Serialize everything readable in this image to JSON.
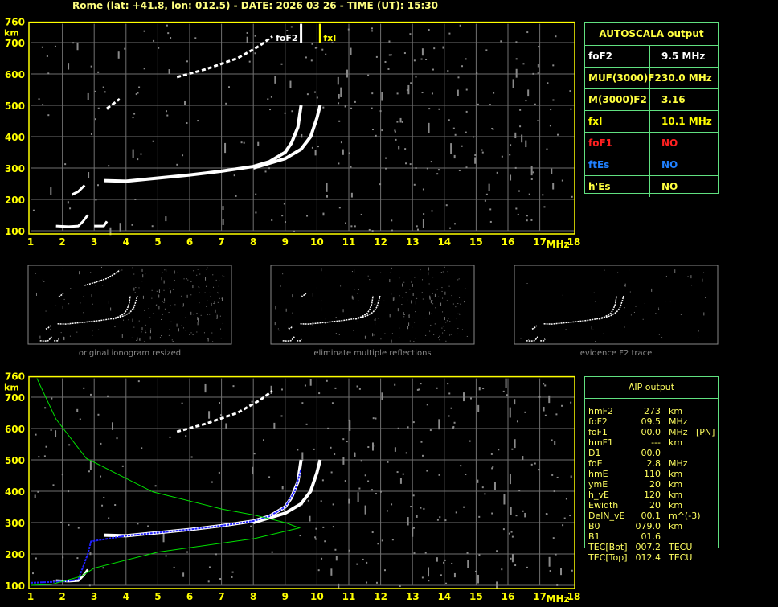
{
  "header": {
    "title": "Rome (lat: +41.8, lon: 012.5) - DATE: 2026 03 26 - TIME (UT): 15:30"
  },
  "colors": {
    "axis": "#ffff00",
    "grid": "#707070",
    "trace": "#ffffff",
    "profile": "#00e000",
    "fit": "#2020ff",
    "table_border": "#60e080",
    "label_yellow": "#ffff40",
    "foF1": "#ff2020",
    "ftEs": "#2080ff"
  },
  "autoscala": {
    "title": "AUTOSCALA output",
    "rows": [
      {
        "key": "foF2",
        "value": "9.5 MHz",
        "color": "#ffffff"
      },
      {
        "key": "MUF(3000)F2",
        "value": "30.0 MHz",
        "color": "#ffff40"
      },
      {
        "key": "M(3000)F2",
        "value": "3.16",
        "color": "#ffff40"
      },
      {
        "key": "fxI",
        "value": "10.1 MHz",
        "color": "#ffff00"
      },
      {
        "key": "foF1",
        "value": "NO",
        "color": "#ff2020"
      },
      {
        "key": "ftEs",
        "value": "NO",
        "color": "#2080ff"
      },
      {
        "key": "h'Es",
        "value": "NO",
        "color": "#ffff40"
      }
    ]
  },
  "aip": {
    "title": "AIP output",
    "rows": [
      {
        "k": "hmF2",
        "v": "273",
        "u": "km",
        "x": ""
      },
      {
        "k": "foF2",
        "v": "09.5",
        "u": "MHz",
        "x": ""
      },
      {
        "k": "foF1",
        "v": "00.0",
        "u": "MHz",
        "x": "[PN]"
      },
      {
        "k": "hmF1",
        "v": "---",
        "u": "km",
        "x": ""
      },
      {
        "k": "D1",
        "v": "00.0",
        "u": "",
        "x": ""
      },
      {
        "k": "foE",
        "v": "2.8",
        "u": "MHz",
        "x": ""
      },
      {
        "k": "hmE",
        "v": "110",
        "u": "km",
        "x": ""
      },
      {
        "k": "ymE",
        "v": "20",
        "u": "km",
        "x": ""
      },
      {
        "k": "h_vE",
        "v": "120",
        "u": "km",
        "x": ""
      },
      {
        "k": "Ewidth",
        "v": "20",
        "u": "km",
        "x": ""
      },
      {
        "k": "DelN_vE",
        "v": "00.1",
        "u": "m^(-3)",
        "x": ""
      },
      {
        "k": "B0",
        "v": "079.0",
        "u": "km",
        "x": ""
      },
      {
        "k": "B1",
        "v": "01.6",
        "u": "",
        "x": ""
      },
      {
        "k": "TEC[Bot]",
        "v": "007.2",
        "u": "TECU",
        "x": ""
      },
      {
        "k": "TEC[Top]",
        "v": "012.4",
        "u": "TECU",
        "x": ""
      }
    ]
  },
  "thumbnails": [
    {
      "caption": "original ionogram resized"
    },
    {
      "caption": "eliminate multiple reflections"
    },
    {
      "caption": "evidence F2 trace"
    }
  ],
  "chart_data": [
    {
      "type": "scatter",
      "title": "",
      "xlabel": "MHz",
      "ylabel": "km",
      "xlim": [
        1,
        18
      ],
      "ylim": [
        100,
        760
      ],
      "xticks": [
        "1",
        "2",
        "3",
        "4",
        "5",
        "6",
        "7",
        "8",
        "9",
        "10",
        "11",
        "12",
        "13",
        "14",
        "15",
        "16",
        "17",
        "18"
      ],
      "yticks": [
        "100",
        "200",
        "300",
        "400",
        "500",
        "600",
        "700",
        "760"
      ],
      "grid": true,
      "markers": [
        {
          "label": "foF2",
          "x": 9.5
        },
        {
          "label": "fxI",
          "x": 10.1
        }
      ],
      "series": [
        {
          "role": "o-trace",
          "points": [
            [
              3.3,
              260
            ],
            [
              4,
              258
            ],
            [
              5,
              268
            ],
            [
              6,
              278
            ],
            [
              7,
              290
            ],
            [
              8,
              305
            ],
            [
              8.5,
              320
            ],
            [
              9,
              350
            ],
            [
              9.2,
              380
            ],
            [
              9.4,
              430
            ],
            [
              9.5,
              500
            ]
          ]
        },
        {
          "role": "x-trace",
          "points": [
            [
              8,
              300
            ],
            [
              9,
              330
            ],
            [
              9.5,
              360
            ],
            [
              9.8,
              400
            ],
            [
              10.0,
              460
            ],
            [
              10.1,
              500
            ]
          ]
        },
        {
          "role": "second-hop",
          "points": [
            [
              5.6,
              590
            ],
            [
              6.5,
              615
            ],
            [
              7.5,
              650
            ],
            [
              8.2,
              690
            ],
            [
              8.6,
              720
            ]
          ]
        },
        {
          "role": "spread-patch",
          "points": [
            [
              3.4,
              490
            ],
            [
              3.6,
              505
            ],
            [
              3.8,
              520
            ]
          ]
        },
        {
          "role": "e-region",
          "points": [
            [
              1.8,
              115
            ],
            [
              2.2,
              113
            ],
            [
              2.5,
              115
            ],
            [
              2.65,
              130
            ],
            [
              2.8,
              150
            ]
          ]
        },
        {
          "role": "e-region-2",
          "points": [
            [
              3.0,
              115
            ],
            [
              3.3,
              115
            ],
            [
              3.4,
              130
            ]
          ]
        },
        {
          "role": "e-patch",
          "points": [
            [
              2.3,
              215
            ],
            [
              2.5,
              225
            ],
            [
              2.7,
              245
            ]
          ]
        }
      ]
    },
    {
      "type": "line",
      "title": "",
      "xlabel": "MHz",
      "ylabel": "km",
      "xlim": [
        1,
        18
      ],
      "ylim": [
        100,
        760
      ],
      "xticks": [
        "1",
        "2",
        "3",
        "4",
        "5",
        "6",
        "7",
        "8",
        "9",
        "10",
        "11",
        "12",
        "13",
        "14",
        "15",
        "16",
        "17",
        "18"
      ],
      "yticks": [
        "100",
        "200",
        "300",
        "400",
        "500",
        "600",
        "700",
        "760"
      ],
      "grid": true,
      "series": [
        {
          "role": "o-trace",
          "color": "#ffffff",
          "points": [
            [
              3.3,
              260
            ],
            [
              4,
              258
            ],
            [
              5,
              268
            ],
            [
              6,
              278
            ],
            [
              7,
              290
            ],
            [
              8,
              305
            ],
            [
              8.5,
              320
            ],
            [
              9,
              350
            ],
            [
              9.2,
              380
            ],
            [
              9.4,
              430
            ],
            [
              9.5,
              500
            ]
          ]
        },
        {
          "role": "x-trace",
          "color": "#ffffff",
          "points": [
            [
              8,
              300
            ],
            [
              9,
              330
            ],
            [
              9.5,
              360
            ],
            [
              9.8,
              400
            ],
            [
              10.0,
              460
            ],
            [
              10.1,
              500
            ]
          ]
        },
        {
          "role": "second-hop",
          "color": "#ffffff",
          "points": [
            [
              5.6,
              590
            ],
            [
              6.5,
              615
            ],
            [
              7.5,
              650
            ],
            [
              8.2,
              690
            ],
            [
              8.6,
              720
            ]
          ]
        },
        {
          "role": "e-region",
          "color": "#ffffff",
          "points": [
            [
              1.8,
              115
            ],
            [
              2.2,
              113
            ],
            [
              2.5,
              115
            ],
            [
              2.65,
              130
            ],
            [
              2.8,
              150
            ]
          ]
        },
        {
          "role": "fitted-trace",
          "color": "#2020ff",
          "points": [
            [
              1,
              108
            ],
            [
              2,
              112
            ],
            [
              2.5,
              118
            ],
            [
              2.8,
              200
            ],
            [
              2.9,
              240
            ],
            [
              3.2,
              245
            ],
            [
              4,
              258
            ],
            [
              5,
              268
            ],
            [
              6,
              278
            ],
            [
              7,
              290
            ],
            [
              8,
              305
            ],
            [
              8.5,
              320
            ],
            [
              9,
              350
            ],
            [
              9.3,
              400
            ],
            [
              9.5,
              470
            ]
          ]
        },
        {
          "role": "electron-density-profile",
          "color": "#00e000",
          "points": [
            [
              1.2,
              760
            ],
            [
              1.8,
              630
            ],
            [
              2.75,
              505
            ],
            [
              4.84,
              398
            ],
            [
              7.02,
              343
            ],
            [
              8.03,
              324
            ],
            [
              9.0,
              300
            ],
            [
              9.45,
              283
            ],
            [
              8.03,
              249
            ],
            [
              5.01,
              206
            ],
            [
              3.0,
              155
            ],
            [
              2.6,
              129
            ],
            [
              1.66,
              103
            ],
            [
              1.0,
              100
            ]
          ]
        }
      ]
    }
  ]
}
